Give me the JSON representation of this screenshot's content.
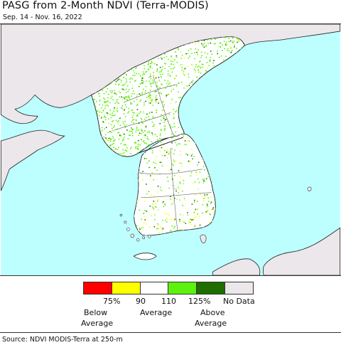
{
  "title": "PASG from 2-Month NDVI (Terra-MODIS)",
  "subtitle": "Sep. 14 - Nov. 16, 2022",
  "colors": {
    "ocean": "#bdffff",
    "land_outside": "#ece7ea",
    "korea_land": "#ffffff",
    "below_75": "#ff0000",
    "p75_90": "#ffff00",
    "p90_110": "#ffffff",
    "p110_125": "#5df20d",
    "above_125": "#1f6e00",
    "no_data": "#ece7ea"
  },
  "legend": {
    "ticks": [
      "75%",
      "90",
      "110",
      "125%"
    ],
    "no_data": "No Data",
    "below_line1": "Below",
    "below_line2": "Average",
    "average": "Average",
    "above_line1": "Above",
    "above_line2": "Average"
  },
  "source": "Source: NDVI MODIS-Terra at 250-m"
}
